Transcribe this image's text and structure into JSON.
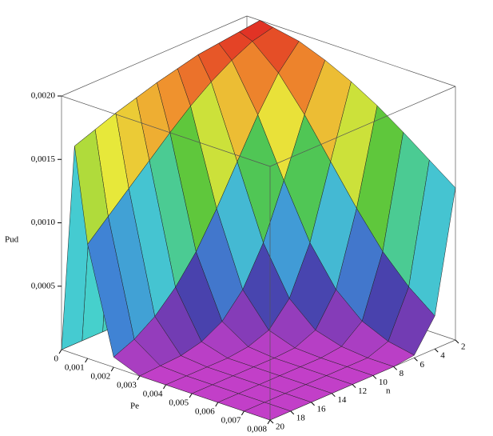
{
  "chart_data": {
    "type": "surface",
    "xlabel": "Pe",
    "ylabel": "n",
    "zlabel": "Pud",
    "x": [
      0,
      0.0005,
      0.001,
      0.002,
      0.003,
      0.004,
      0.005,
      0.006,
      0.007,
      0.008
    ],
    "y": [
      2,
      4,
      6,
      8,
      10,
      12,
      14,
      16,
      18,
      20
    ],
    "z": [
      [
        0,
        0,
        0,
        0,
        0,
        0,
        0,
        0,
        0,
        0
      ],
      [
        0.002,
        0.00198,
        0.00196,
        0.00194,
        0.0019,
        0.00186,
        0.00181,
        0.00176,
        0.0017,
        0.00164
      ],
      [
        0.00198,
        0.00194,
        0.00186,
        0.00176,
        0.00164,
        0.0015,
        0.00135,
        0.0012,
        0.00105,
        0.0009
      ],
      [
        0.00194,
        0.00176,
        0.0015,
        0.0012,
        0.0009,
        0.00063,
        0.00042,
        0.00026,
        0.00015,
        8e-05
      ],
      [
        0.00186,
        0.0015,
        0.00105,
        0.00063,
        0.00033,
        0.00015,
        6e-05,
        2e-05,
        1e-05,
        0
      ],
      [
        0.00176,
        0.0012,
        0.00063,
        0.00026,
        8e-05,
        2e-05,
        0,
        0,
        0,
        0
      ],
      [
        0.00164,
        0.0009,
        0.00033,
        8e-05,
        1e-05,
        0,
        0,
        0,
        0,
        0
      ],
      [
        0.0015,
        0.00063,
        0.00015,
        2e-05,
        0,
        0,
        0,
        0,
        0,
        0
      ],
      [
        0.00135,
        0.00042,
        6e-05,
        0,
        0,
        0,
        0,
        0,
        0,
        0
      ],
      [
        0.0012,
        0.00026,
        2e-05,
        0,
        0,
        0,
        0,
        0,
        0,
        0
      ]
    ],
    "xlim": [
      0,
      0.008
    ],
    "ylim": [
      2,
      20
    ],
    "zlim": [
      0,
      0.002
    ],
    "xticks": [
      0,
      {
        "value": 0.001,
        "label": "0,001"
      },
      {
        "value": 0.002,
        "label": "0,002"
      },
      {
        "value": 0.003,
        "label": "0,003"
      },
      {
        "value": 0.004,
        "label": "0,004"
      },
      {
        "value": 0.005,
        "label": "0,005"
      },
      {
        "value": 0.006,
        "label": "0,006"
      },
      {
        "value": 0.007,
        "label": "0,007"
      },
      {
        "value": 0.008,
        "label": "0,008"
      }
    ],
    "yticks": [
      2,
      4,
      6,
      8,
      10,
      12,
      14,
      16,
      18,
      20
    ],
    "zticks": [
      {
        "value": 0.0005,
        "label": "0,0005"
      },
      {
        "value": 0.001,
        "label": "0,0010"
      },
      {
        "value": 0.0015,
        "label": "0,0015"
      },
      {
        "value": 0.002,
        "label": "0,0020"
      }
    ],
    "colorscale": [
      "#c23fc8",
      "#4a3aa8",
      "#3f8ad8",
      "#46d0d0",
      "#52c43c",
      "#e8e83a",
      "#f0962e",
      "#e02a24"
    ]
  }
}
